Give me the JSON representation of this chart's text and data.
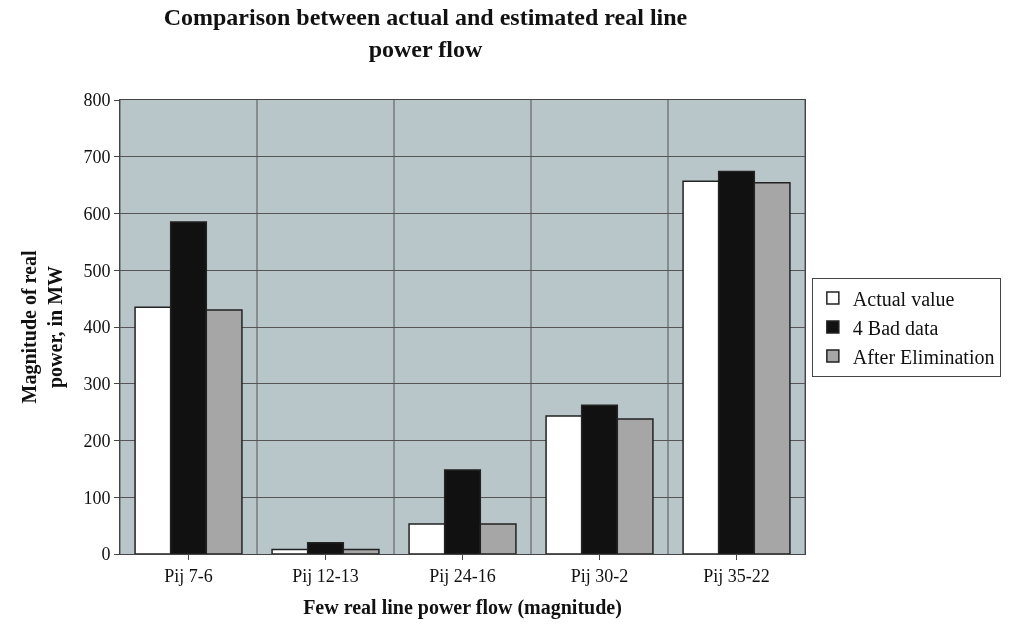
{
  "chart_data": {
    "type": "bar",
    "title": "Comparison between actual and estimated real line power flow",
    "xlabel": "Few real line power flow (magnitude)",
    "ylabel": "Magnitude of real power, in MW",
    "categories": [
      "Pij 7-6",
      "Pij 12-13",
      "Pij 24-16",
      "Pij 30-2",
      "Pij 35-22"
    ],
    "series": [
      {
        "name": "Actual value",
        "color": "#ffffff",
        "values": [
          435,
          8,
          53,
          243,
          657
        ]
      },
      {
        "name": "4 Bad data",
        "color": "#111111",
        "values": [
          585,
          20,
          148,
          262,
          674
        ]
      },
      {
        "name": "After Elimination",
        "color": "#a6a6a6",
        "values": [
          430,
          8,
          53,
          238,
          654
        ]
      }
    ],
    "ylim": [
      0,
      800
    ],
    "yticks": [
      0,
      100,
      200,
      300,
      400,
      500,
      600,
      700,
      800
    ],
    "grid": true,
    "legend": "right"
  }
}
